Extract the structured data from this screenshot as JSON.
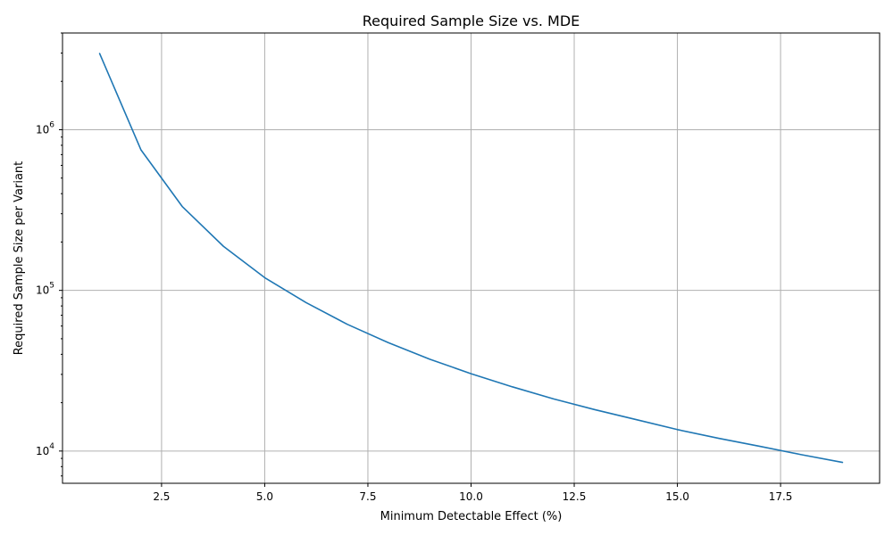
{
  "chart_data": {
    "type": "line",
    "title": "Required Sample Size vs. MDE",
    "xlabel": "Minimum Detectable Effect (%)",
    "ylabel": "Required Sample Size per Variant",
    "xlim": [
      0.1,
      19.9
    ],
    "ylim": [
      6300,
      4000000
    ],
    "yscale": "log",
    "grid": true,
    "color": "#1f77b4",
    "xticks": [
      {
        "value": 2.5,
        "label": "2.5"
      },
      {
        "value": 5.0,
        "label": "5.0"
      },
      {
        "value": 7.5,
        "label": "7.5"
      },
      {
        "value": 10.0,
        "label": "10.0"
      },
      {
        "value": 12.5,
        "label": "12.5"
      },
      {
        "value": 15.0,
        "label": "15.0"
      },
      {
        "value": 17.5,
        "label": "17.5"
      }
    ],
    "yticks": [
      {
        "value": 10000,
        "base": "10",
        "exp": "4"
      },
      {
        "value": 100000,
        "base": "10",
        "exp": "5"
      },
      {
        "value": 1000000,
        "base": "10",
        "exp": "6"
      }
    ],
    "series": [
      {
        "x": [
          1,
          2,
          3,
          4,
          5,
          6,
          7,
          8,
          9,
          10,
          11,
          12,
          13,
          14,
          15,
          16,
          17,
          18,
          19
        ],
        "y": [
          2980000,
          750000,
          333000,
          188000,
          120000,
          84000,
          61500,
          47200,
          37300,
          30300,
          25100,
          21100,
          18100,
          15700,
          13600,
          12000,
          10700,
          9500,
          8500
        ]
      }
    ]
  }
}
